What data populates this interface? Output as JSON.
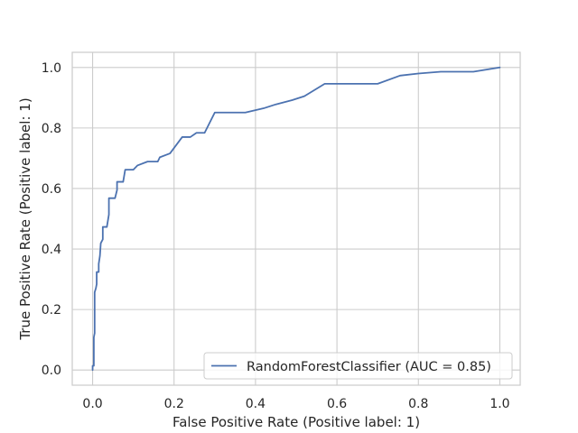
{
  "chart_data": {
    "type": "line",
    "xlabel": "False Positive Rate (Positive label: 1)",
    "ylabel": "True Positive Rate (Positive label: 1)",
    "xlim": [
      -0.05,
      1.05
    ],
    "ylim": [
      -0.05,
      1.05
    ],
    "xticks": [
      0.0,
      0.2,
      0.4,
      0.6,
      0.8,
      1.0
    ],
    "yticks": [
      0.0,
      0.2,
      0.4,
      0.6,
      0.8,
      1.0
    ],
    "xtick_labels": [
      "0.0",
      "0.2",
      "0.4",
      "0.6",
      "0.8",
      "1.0"
    ],
    "ytick_labels": [
      "0.0",
      "0.2",
      "0.4",
      "0.6",
      "0.8",
      "1.0"
    ],
    "grid": true,
    "legend_position": "bottom-right",
    "colors": {
      "line": "#4c72b0",
      "grid": "#cccccc",
      "spine": "#cccccc",
      "text": "#262626"
    },
    "series": [
      {
        "name": "RandomForestClassifier (AUC = 0.85)",
        "points": [
          [
            0.0,
            0.0
          ],
          [
            0.0,
            0.014
          ],
          [
            0.003,
            0.014
          ],
          [
            0.003,
            0.108
          ],
          [
            0.005,
            0.122
          ],
          [
            0.005,
            0.257
          ],
          [
            0.008,
            0.27
          ],
          [
            0.01,
            0.284
          ],
          [
            0.01,
            0.324
          ],
          [
            0.015,
            0.324
          ],
          [
            0.015,
            0.351
          ],
          [
            0.018,
            0.378
          ],
          [
            0.02,
            0.419
          ],
          [
            0.025,
            0.432
          ],
          [
            0.025,
            0.473
          ],
          [
            0.035,
            0.473
          ],
          [
            0.04,
            0.514
          ],
          [
            0.04,
            0.568
          ],
          [
            0.055,
            0.568
          ],
          [
            0.06,
            0.595
          ],
          [
            0.06,
            0.622
          ],
          [
            0.075,
            0.622
          ],
          [
            0.08,
            0.662
          ],
          [
            0.1,
            0.662
          ],
          [
            0.11,
            0.676
          ],
          [
            0.135,
            0.689
          ],
          [
            0.16,
            0.689
          ],
          [
            0.165,
            0.703
          ],
          [
            0.19,
            0.716
          ],
          [
            0.22,
            0.77
          ],
          [
            0.24,
            0.77
          ],
          [
            0.255,
            0.784
          ],
          [
            0.275,
            0.784
          ],
          [
            0.3,
            0.851
          ],
          [
            0.375,
            0.851
          ],
          [
            0.42,
            0.865
          ],
          [
            0.45,
            0.878
          ],
          [
            0.49,
            0.892
          ],
          [
            0.52,
            0.905
          ],
          [
            0.57,
            0.946
          ],
          [
            0.7,
            0.946
          ],
          [
            0.755,
            0.973
          ],
          [
            0.8,
            0.98
          ],
          [
            0.855,
            0.986
          ],
          [
            0.935,
            0.986
          ],
          [
            1.0,
            1.0
          ]
        ]
      }
    ]
  }
}
